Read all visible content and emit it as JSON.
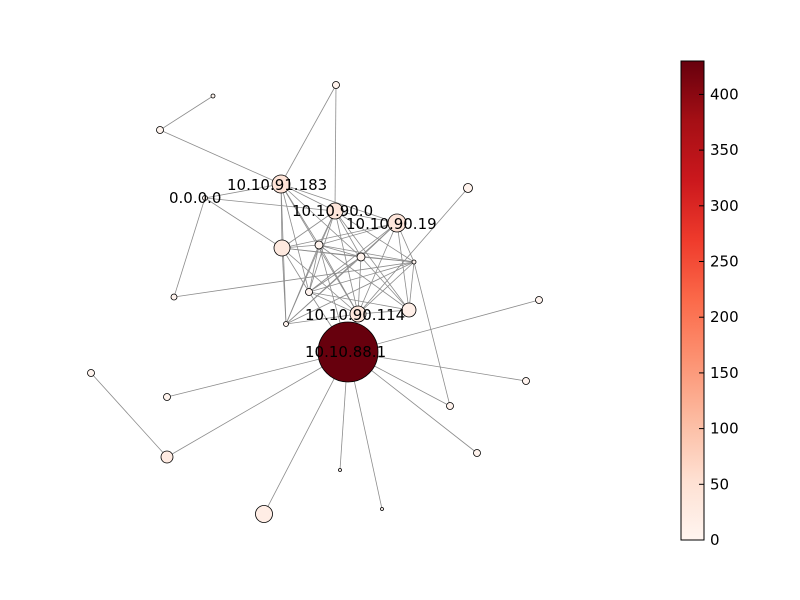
{
  "colorbar": {
    "min": 0,
    "max": 430,
    "ticks": [
      "0",
      "50",
      "100",
      "150",
      "200",
      "250",
      "300",
      "350",
      "400"
    ],
    "colormap": "Reds",
    "colors": [
      "#fff5f0",
      "#fee0d2",
      "#fcbba1",
      "#fc9272",
      "#fb6a4a",
      "#ef3b2c",
      "#cb181d",
      "#a50f15",
      "#67000d"
    ]
  },
  "labels": {
    "n_0000": "0.0.0.0",
    "n_91183": "10.10.91.183",
    "n_900": "10.10.90.0",
    "n_9019": "10.10.90.19",
    "n_90114": "10.10.90.114",
    "n_8811": "10.10.88.1"
  },
  "node_values": {
    "n_8811": 430,
    "n_91183": 45,
    "n_900": 40,
    "n_9019": 40,
    "n_90114": 35,
    "n_big_a": 30,
    "n_bottom_big": 20,
    "n_left_lower": 25,
    "n_right_mid": 15,
    "n_0000": 2,
    "n_top_small": 3,
    "n_c1": 5,
    "n_c2": 5,
    "n_c3": 4,
    "n_c4": 4,
    "n_e1": 2,
    "n_tl": 3,
    "n_top_r": 5,
    "n_far_r": 4,
    "n_r_mid2": 5,
    "n_l_mid": 4,
    "n_ll1": 3,
    "n_ll2": 3,
    "n_br1": 4,
    "n_br2": 5,
    "n_b1": 2,
    "n_b2": 2,
    "n_right1": 8
  }
}
